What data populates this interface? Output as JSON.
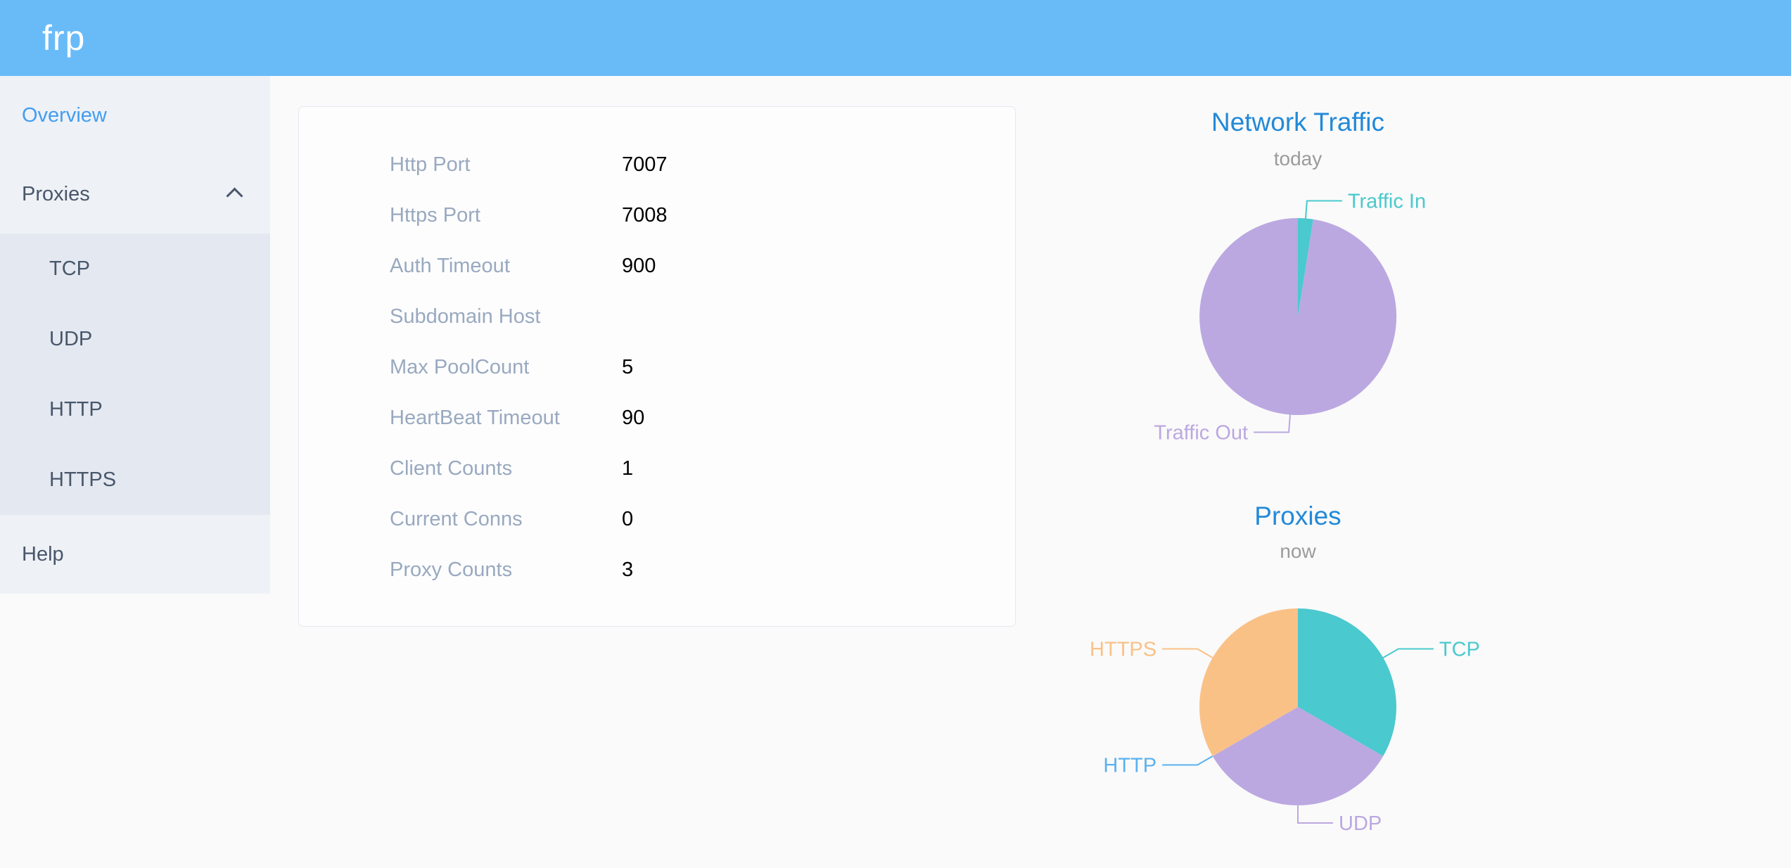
{
  "app": {
    "logo": "frp"
  },
  "colors": {
    "header_bg": "#69bbf8",
    "page_bg": "#fafafa",
    "sidebar_bg": "#eef1f6",
    "submenu_bg": "#e4e8f1",
    "menu_text": "#48576a",
    "active_blue": "#429df2",
    "label_gray": "#99a9bf",
    "card_border": "#e5e8f2",
    "title_blue": "#2289d8",
    "subtitle_gray": "#9b9b9b",
    "teal": "#4ac9ce",
    "purple": "#bba8e1",
    "blue": "#5ab1ef",
    "orange": "#fac187"
  },
  "sidebar": {
    "items": [
      {
        "label": "Overview",
        "active": true
      },
      {
        "label": "Proxies",
        "active": false,
        "expanded": true,
        "children": [
          "TCP",
          "UDP",
          "HTTP",
          "HTTPS"
        ]
      },
      {
        "label": "Help",
        "active": false
      }
    ]
  },
  "server_info": {
    "rows": [
      {
        "label": "Http Port",
        "value": "7007"
      },
      {
        "label": "Https Port",
        "value": "7008"
      },
      {
        "label": "Auth Timeout",
        "value": "900"
      },
      {
        "label": "Subdomain Host",
        "value": ""
      },
      {
        "label": "Max PoolCount",
        "value": "5"
      },
      {
        "label": "HeartBeat Timeout",
        "value": "90"
      },
      {
        "label": "Client Counts",
        "value": "1"
      },
      {
        "label": "Current Conns",
        "value": "0"
      },
      {
        "label": "Proxy Counts",
        "value": "3"
      }
    ]
  },
  "chart_data": [
    {
      "type": "pie",
      "title": "Network Traffic",
      "subtitle": "today",
      "legend": "none",
      "labels": "outside, colored like slice, with label lines",
      "note": "values estimated as percent of circle; no numeric labels shown",
      "series": [
        {
          "name": "Traffic In",
          "value": 2.5,
          "color": "#4ac9ce"
        },
        {
          "name": "Traffic Out",
          "value": 97.5,
          "color": "#bba8e1"
        }
      ]
    },
    {
      "type": "pie",
      "title": "Proxies",
      "subtitle": "now",
      "legend": "none",
      "labels": "outside, colored like slice, with label lines",
      "note": "counts by proxy type; HTTP is zero-width slice with label at UDP/HTTPS boundary",
      "series": [
        {
          "name": "TCP",
          "value": 1,
          "color": "#4ac9ce"
        },
        {
          "name": "UDP",
          "value": 1,
          "color": "#bba8e1"
        },
        {
          "name": "HTTP",
          "value": 0,
          "color": "#5ab1ef"
        },
        {
          "name": "HTTPS",
          "value": 1,
          "color": "#fac187"
        }
      ]
    }
  ]
}
